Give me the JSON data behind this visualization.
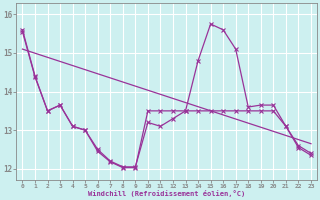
{
  "xlabel": "Windchill (Refroidissement éolien,°C)",
  "background_color": "#cdf0f0",
  "grid_color": "#ffffff",
  "line_color": "#993399",
  "xlim": [
    -0.5,
    23.5
  ],
  "ylim": [
    11.7,
    16.3
  ],
  "yticks": [
    12,
    13,
    14,
    15,
    16
  ],
  "xticks": [
    0,
    1,
    2,
    3,
    4,
    5,
    6,
    7,
    8,
    9,
    10,
    11,
    12,
    13,
    14,
    15,
    16,
    17,
    18,
    19,
    20,
    21,
    22,
    23
  ],
  "series1_x": [
    0,
    1,
    2,
    3,
    4,
    5,
    6,
    7,
    8,
    9,
    10,
    11,
    12,
    13,
    14,
    15,
    16,
    17,
    18,
    19,
    20,
    21,
    22,
    23
  ],
  "series1_y": [
    15.6,
    14.4,
    13.5,
    13.65,
    13.1,
    13.0,
    12.5,
    12.2,
    12.05,
    12.05,
    13.2,
    13.1,
    13.3,
    13.5,
    14.8,
    15.75,
    15.6,
    15.1,
    13.6,
    13.65,
    13.65,
    13.1,
    12.6,
    12.4
  ],
  "series2_x": [
    0,
    1,
    2,
    3,
    4,
    5,
    6,
    7,
    8,
    9,
    10,
    11,
    12,
    13,
    14,
    15,
    16,
    17,
    18,
    19,
    20,
    21,
    22,
    23
  ],
  "series2_y": [
    15.55,
    14.38,
    13.5,
    13.65,
    13.1,
    13.0,
    12.45,
    12.18,
    12.03,
    12.03,
    13.5,
    13.5,
    13.5,
    13.5,
    13.5,
    13.5,
    13.5,
    13.5,
    13.5,
    13.5,
    13.5,
    13.1,
    12.55,
    12.35
  ],
  "series3_x": [
    0,
    23
  ],
  "series3_y": [
    15.1,
    12.65
  ]
}
